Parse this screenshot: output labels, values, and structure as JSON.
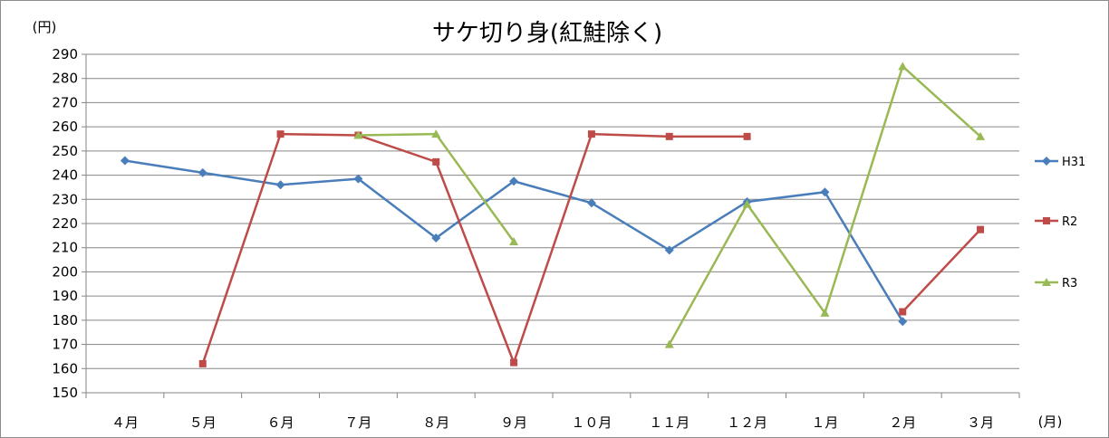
{
  "chart_data": {
    "type": "line",
    "title": "サケ切り身(紅鮭除く)",
    "ylabel": "(円)",
    "xlabel": "(月)",
    "ylim": [
      150,
      290
    ],
    "ystep": 10,
    "grid": true,
    "legend_position": "right",
    "categories": [
      "４月",
      "５月",
      "６月",
      "７月",
      "８月",
      "９月",
      "１０月",
      "１１月",
      "１２月",
      "１月",
      "２月",
      "３月"
    ],
    "series": [
      {
        "name": "H31",
        "color": "#4a7ebb",
        "marker": "diamond",
        "values": [
          246,
          241,
          236,
          238.5,
          214,
          237.5,
          228.5,
          209,
          229,
          233,
          179.5,
          null
        ]
      },
      {
        "name": "R2",
        "color": "#be4b48",
        "marker": "square",
        "values": [
          null,
          162,
          257,
          256.5,
          245.5,
          162.5,
          257,
          256,
          256,
          null,
          183.5,
          217.5
        ]
      },
      {
        "name": "R3",
        "color": "#98b954",
        "marker": "triangle",
        "values": [
          null,
          null,
          null,
          256.5,
          257,
          212.5,
          null,
          170,
          228,
          183,
          285,
          256
        ]
      }
    ]
  }
}
